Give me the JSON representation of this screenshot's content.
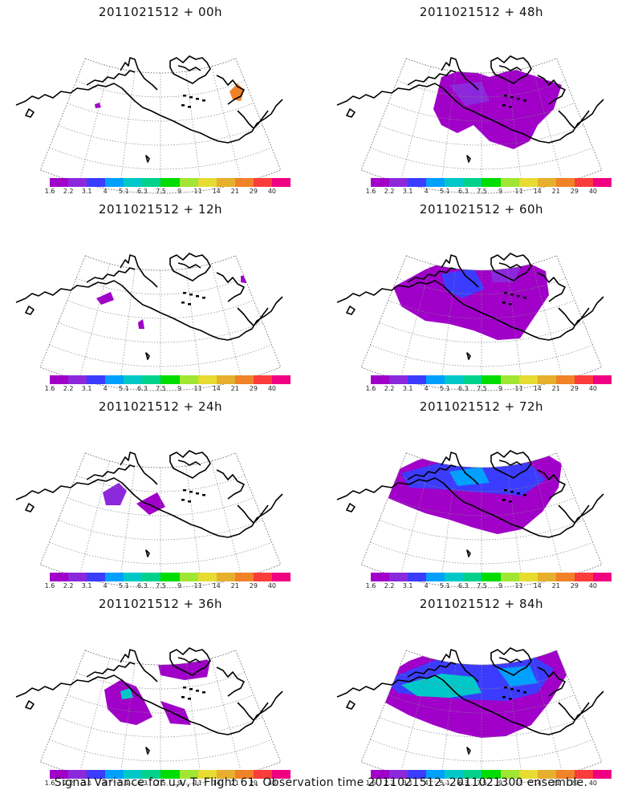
{
  "panels": [
    {
      "title": "2011021512 + 00h",
      "lead_hours": 0,
      "coverage": 0.03
    },
    {
      "title": "2011021512 + 48h",
      "lead_hours": 48,
      "coverage": 0.45
    },
    {
      "title": "2011021512 + 12h",
      "lead_hours": 12,
      "coverage": 0.06
    },
    {
      "title": "2011021512 + 60h",
      "lead_hours": 60,
      "coverage": 0.55
    },
    {
      "title": "2011021512 + 24h",
      "lead_hours": 24,
      "coverage": 0.12
    },
    {
      "title": "2011021512 + 72h",
      "lead_hours": 72,
      "coverage": 0.65
    },
    {
      "title": "2011021512 + 36h",
      "lead_hours": 36,
      "coverage": 0.25
    },
    {
      "title": "2011021512 + 84h",
      "lead_hours": 84,
      "coverage": 0.75
    }
  ],
  "colorbar": {
    "labels": [
      "1.6",
      "2.2",
      "3.1",
      "4",
      "5.1",
      "6.3",
      "7.5",
      "9",
      "11",
      "14",
      "21",
      "29",
      "40"
    ],
    "colors": [
      "#a000c8",
      "#8c28dc",
      "#3c3cff",
      "#00a0ff",
      "#00c8c8",
      "#00d28c",
      "#00dc00",
      "#a0e632",
      "#e6dc32",
      "#e6af2d",
      "#f08228",
      "#fa3c3c",
      "#f00082"
    ]
  },
  "footer": "Signal Variance for u,v,T. Flight 61. Observation time 2011021512. 2011021300 ensemble."
}
